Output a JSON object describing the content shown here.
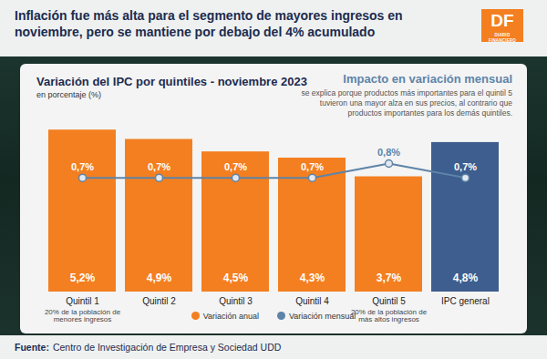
{
  "chart_data": {
    "type": "bar",
    "title": "Inflación fue más alta para el segmento de mayores ingresos en noviembre, pero se mantiene por debajo del 4% acumulado",
    "subtitle": "Variación del IPC por quintiles - noviembre 2023",
    "unit": "en porcentaje (%)",
    "annotation": {
      "title": "Impacto en variación mensual",
      "text": "se explica porque productos más importantes para el quintil 5 tuvieron una mayor alza en sus precios, al contrario que productos importantes para los demás quintiles."
    },
    "source": {
      "label": "Fuente:",
      "text": "Centro de Investigación de Empresa y Sociedad UDD"
    },
    "logo": {
      "text": "DF",
      "caption": "DIARIO FINANCIERO"
    },
    "categories": [
      "Quintil 1",
      "Quintil 2",
      "Quintil 3",
      "Quintil 4",
      "Quintil 5",
      "IPC general"
    ],
    "category_notes": [
      "20% de la población de menores ingresos",
      null,
      null,
      null,
      "20% de la población de más altos ingresos",
      null
    ],
    "series": [
      {
        "name": "Variación anual",
        "type": "bar",
        "color": "#f47f20",
        "colors": [
          "#f47f20",
          "#f47f20",
          "#f47f20",
          "#f47f20",
          "#f47f20",
          "#3d5e8e"
        ],
        "values": [
          5.2,
          4.9,
          4.5,
          4.3,
          3.7,
          4.8
        ],
        "value_labels": [
          "5,2%",
          "4,9%",
          "4,5%",
          "4,3%",
          "3,7%",
          "4,8%"
        ]
      },
      {
        "name": "Variación mensual",
        "type": "line",
        "axis": "y2",
        "marker": "circle",
        "color": "#5d84a8",
        "values": [
          0.7,
          0.7,
          0.7,
          0.7,
          0.8,
          0.7
        ],
        "value_labels": [
          "0,7%",
          "0,7%",
          "0,7%",
          "0,7%",
          "0,8%",
          "0,7%"
        ]
      }
    ],
    "ylim": [
      0,
      5.5
    ],
    "y2lim": [
      -0.1,
      1.1
    ],
    "tick_labels": false,
    "grid": false,
    "data_labels": true,
    "legend": "bottom"
  }
}
